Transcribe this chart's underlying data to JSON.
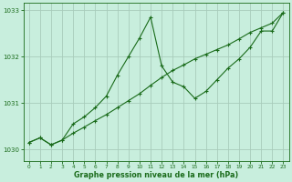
{
  "line1_x": [
    0,
    1,
    2,
    3,
    4,
    5,
    6,
    7,
    8,
    9,
    10,
    11,
    12,
    13,
    14,
    15,
    16,
    17,
    18,
    19,
    20,
    21,
    22,
    23
  ],
  "line1_y": [
    1030.15,
    1030.25,
    1030.1,
    1030.2,
    1030.55,
    1030.7,
    1030.9,
    1031.15,
    1031.6,
    1032.0,
    1032.4,
    1032.85,
    1031.8,
    1031.45,
    1031.35,
    1031.1,
    1031.25,
    1031.5,
    1031.75,
    1031.95,
    1032.2,
    1032.55,
    1032.55,
    1032.95
  ],
  "line2_x": [
    0,
    1,
    2,
    3,
    4,
    5,
    6,
    7,
    8,
    9,
    10,
    11,
    12,
    13,
    14,
    15,
    16,
    17,
    18,
    19,
    20,
    21,
    22,
    23
  ],
  "line2_y": [
    1030.15,
    1030.25,
    1030.1,
    1030.2,
    1030.35,
    1030.48,
    1030.62,
    1030.75,
    1030.9,
    1031.05,
    1031.2,
    1031.38,
    1031.55,
    1031.7,
    1031.82,
    1031.95,
    1032.05,
    1032.15,
    1032.25,
    1032.38,
    1032.52,
    1032.62,
    1032.72,
    1032.95
  ],
  "bg_color": "#c8eedd",
  "line_color": "#1a6b1a",
  "grid_color": "#a8ccbb",
  "text_color": "#1a6b1a",
  "xlabel": "Graphe pression niveau de la mer (hPa)",
  "ylim": [
    1029.75,
    1033.15
  ],
  "yticks": [
    1030,
    1031,
    1032,
    1033
  ],
  "xlim": [
    -0.5,
    23.5
  ],
  "xticks": [
    0,
    1,
    2,
    3,
    4,
    5,
    6,
    7,
    8,
    9,
    10,
    11,
    12,
    13,
    14,
    15,
    16,
    17,
    18,
    19,
    20,
    21,
    22,
    23
  ]
}
